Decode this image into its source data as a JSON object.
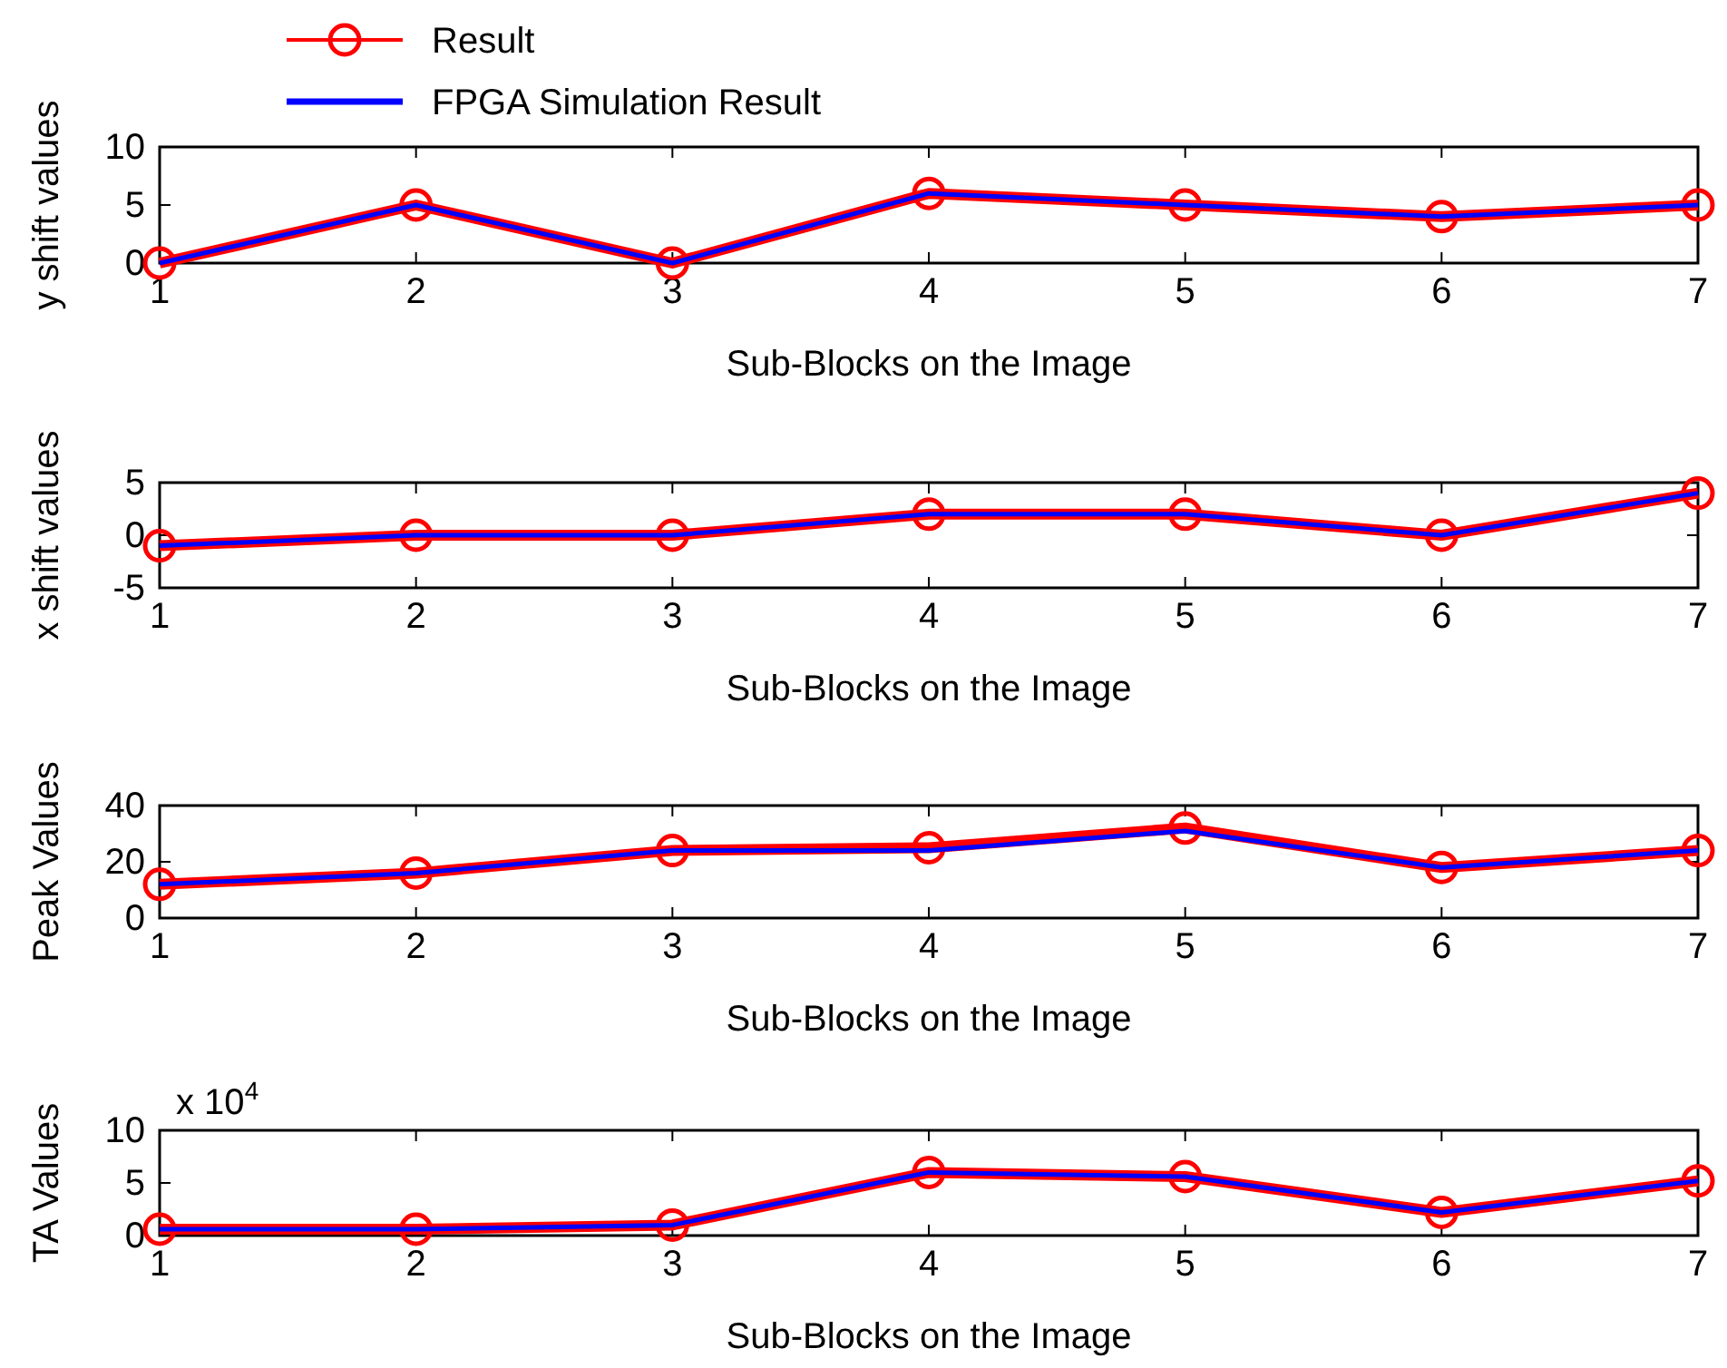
{
  "chart_data": [
    {
      "type": "line",
      "xlabel": "Sub-Blocks on the Image",
      "ylabel": "y shift values",
      "x": [
        1,
        2,
        3,
        4,
        5,
        6,
        7
      ],
      "xlim": [
        1,
        7
      ],
      "xticks": [
        1,
        2,
        3,
        4,
        5,
        6,
        7
      ],
      "ylim": [
        0,
        10
      ],
      "yticks": [
        0,
        5,
        10
      ],
      "legend": "top left",
      "series": [
        {
          "name": "Result",
          "color": "#ff0000",
          "marker": "circle",
          "values": [
            0,
            5,
            0,
            6,
            5,
            4,
            5
          ]
        },
        {
          "name": "FPGA Simulation Result",
          "color": "#0000ff",
          "values": [
            0,
            5,
            0,
            6,
            5,
            4,
            5
          ]
        }
      ]
    },
    {
      "type": "line",
      "xlabel": "Sub-Blocks on the Image",
      "ylabel": "x shift values",
      "x": [
        1,
        2,
        3,
        4,
        5,
        6,
        7
      ],
      "xlim": [
        1,
        7
      ],
      "xticks": [
        1,
        2,
        3,
        4,
        5,
        6,
        7
      ],
      "ylim": [
        -5,
        5
      ],
      "yticks": [
        -5,
        0,
        5
      ],
      "series": [
        {
          "color": "#ff0000",
          "marker": "circle",
          "values": [
            -1,
            0,
            0,
            2,
            2,
            0,
            4
          ]
        },
        {
          "color": "#0000ff",
          "values": [
            -1,
            0,
            0,
            2,
            2,
            0,
            4
          ]
        }
      ]
    },
    {
      "type": "line",
      "xlabel": "Sub-Blocks on the Image",
      "ylabel": "Peak Values",
      "x": [
        1,
        2,
        3,
        4,
        5,
        6,
        7
      ],
      "xlim": [
        1,
        7
      ],
      "xticks": [
        1,
        2,
        3,
        4,
        5,
        6,
        7
      ],
      "ylim": [
        0,
        40
      ],
      "yticks": [
        0,
        20,
        40
      ],
      "series": [
        {
          "color": "#ff0000",
          "marker": "circle",
          "values": [
            12,
            16,
            24,
            25,
            32,
            18,
            24
          ]
        },
        {
          "color": "#0000ff",
          "values": [
            12,
            16,
            24,
            24,
            31,
            18,
            24
          ]
        }
      ]
    },
    {
      "type": "line",
      "xlabel": "Sub-Blocks on the Image",
      "ylabel": "TA Values",
      "annotations": [
        "x 10$^{4}$"
      ],
      "x": [
        1,
        2,
        3,
        4,
        5,
        6,
        7
      ],
      "xlim": [
        1,
        7
      ],
      "xticks": [
        1,
        2,
        3,
        4,
        5,
        6,
        7
      ],
      "ylim": [
        0,
        10
      ],
      "yticks": [
        0,
        5,
        10
      ],
      "series": [
        {
          "color": "#ff0000",
          "marker": "circle",
          "values": [
            0.6,
            0.6,
            1.0,
            6.0,
            5.6,
            2.2,
            5.2
          ]
        },
        {
          "color": "#0000ff",
          "values": [
            0.6,
            0.6,
            1.0,
            6.0,
            5.6,
            2.2,
            5.2
          ]
        }
      ]
    }
  ]
}
